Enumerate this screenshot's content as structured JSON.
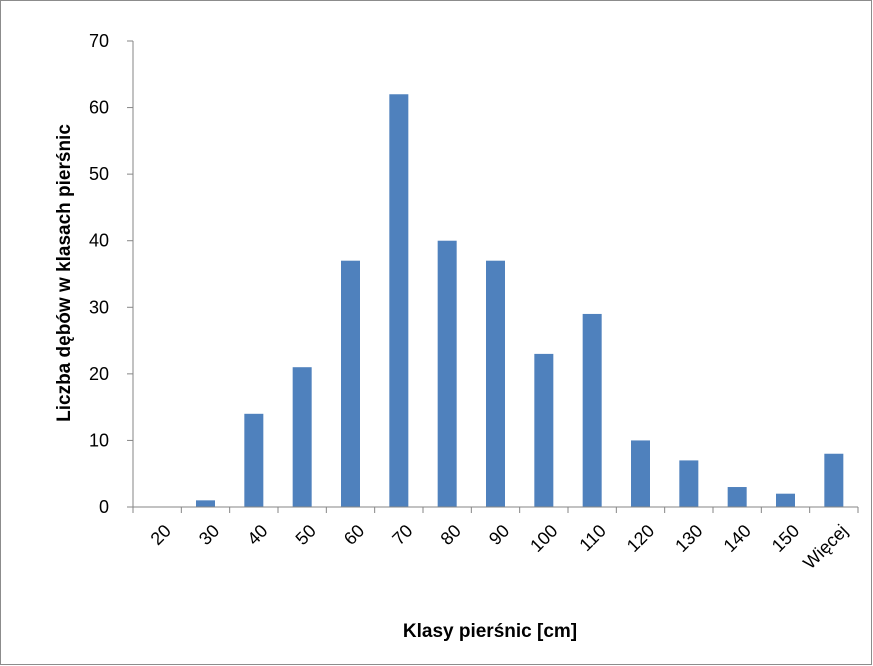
{
  "chart_data": {
    "type": "bar",
    "title": "",
    "xlabel": "Klasy pierśnic [cm]",
    "ylabel": "Liczba dębów w klasach pierśnic",
    "categories": [
      "20",
      "30",
      "40",
      "50",
      "60",
      "70",
      "80",
      "90",
      "100",
      "110",
      "120",
      "130",
      "140",
      "150",
      "Więcej"
    ],
    "values": [
      0,
      1,
      14,
      21,
      37,
      62,
      40,
      37,
      23,
      29,
      10,
      7,
      3,
      2,
      8
    ],
    "ylim": [
      0,
      70
    ],
    "yticks": [
      0,
      10,
      20,
      30,
      40,
      50,
      60,
      70
    ],
    "grid": false,
    "legend": "none",
    "bar_color": "#4f81bd",
    "axis_color": "#868686"
  }
}
